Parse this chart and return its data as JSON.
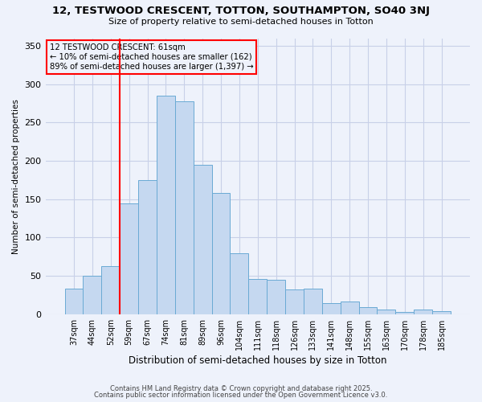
{
  "title_line1": "12, TESTWOOD CRESCENT, TOTTON, SOUTHAMPTON, SO40 3NJ",
  "title_line2": "Size of property relative to semi-detached houses in Totton",
  "xlabel": "Distribution of semi-detached houses by size in Totton",
  "ylabel": "Number of semi-detached properties",
  "categories": [
    "37sqm",
    "44sqm",
    "52sqm",
    "59sqm",
    "67sqm",
    "74sqm",
    "81sqm",
    "89sqm",
    "96sqm",
    "104sqm",
    "111sqm",
    "118sqm",
    "126sqm",
    "133sqm",
    "141sqm",
    "148sqm",
    "155sqm",
    "163sqm",
    "170sqm",
    "178sqm",
    "185sqm"
  ],
  "values": [
    33,
    50,
    63,
    145,
    175,
    285,
    278,
    195,
    158,
    80,
    46,
    45,
    32,
    33,
    15,
    17,
    9,
    6,
    3,
    6,
    4
  ],
  "bar_color": "#c5d8f0",
  "bar_edge_color": "#6aaad4",
  "vline_color": "red",
  "vline_index": 3,
  "annotation_title": "12 TESTWOOD CRESCENT: 61sqm",
  "annotation_line1": "← 10% of semi-detached houses are smaller (162)",
  "annotation_line2": "89% of semi-detached houses are larger (1,397) →",
  "annotation_box_color": "red",
  "ylim": [
    0,
    360
  ],
  "yticks": [
    0,
    50,
    100,
    150,
    200,
    250,
    300,
    350
  ],
  "footer_line1": "Contains HM Land Registry data © Crown copyright and database right 2025.",
  "footer_line2": "Contains public sector information licensed under the Open Government Licence v3.0.",
  "bg_color": "#eef2fb",
  "grid_color": "#c8d0e8"
}
